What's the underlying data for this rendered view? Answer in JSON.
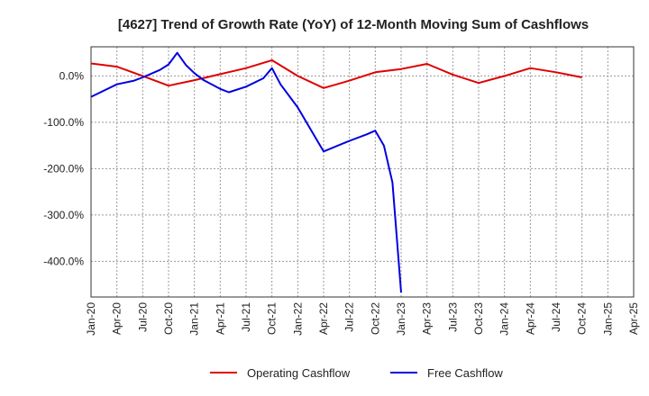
{
  "chart_data": {
    "type": "line",
    "title": "[4627]  Trend of Growth Rate (YoY) of 12-Month Moving Sum of Cashflows",
    "x": [
      "2020-01",
      "2020-04",
      "2020-07",
      "2020-10",
      "2021-01",
      "2021-04",
      "2021-07",
      "2021-10",
      "2022-01",
      "2022-04",
      "2022-07",
      "2022-10",
      "2023-01",
      "2023-04",
      "2023-07",
      "2023-10",
      "2024-01",
      "2024-04",
      "2024-07",
      "2024-10",
      "2025-01",
      "2025-04"
    ],
    "x_ticks": [
      "Jan-20",
      "Apr-20",
      "Jul-20",
      "Oct-20",
      "Jan-21",
      "Apr-21",
      "Jul-21",
      "Oct-21",
      "Jan-22",
      "Apr-22",
      "Jul-22",
      "Oct-22",
      "Jan-23",
      "Apr-23",
      "Jul-23",
      "Oct-23",
      "Jan-24",
      "Apr-24",
      "Jul-24",
      "Oct-24",
      "Jan-25",
      "Apr-25"
    ],
    "y_ticks": [
      "0.0%",
      "-100.0%",
      "-200.0%",
      "-300.0%",
      "-400.0%"
    ],
    "y_tick_values": [
      0,
      -100,
      -200,
      -300,
      -400
    ],
    "ylim": [
      -477,
      63
    ],
    "xlim_months": [
      0,
      63
    ],
    "grid": true,
    "legend_position": "bottom",
    "series": [
      {
        "name": "Operating Cashflow",
        "color": "#e00000",
        "points": [
          [
            0,
            27
          ],
          [
            3,
            20
          ],
          [
            6,
            0
          ],
          [
            9,
            -21
          ],
          [
            12,
            -9
          ],
          [
            15,
            4
          ],
          [
            18,
            17
          ],
          [
            21,
            34
          ],
          [
            24,
            0
          ],
          [
            27,
            -26
          ],
          [
            30,
            -10
          ],
          [
            33,
            8
          ],
          [
            36,
            15
          ],
          [
            39,
            26
          ],
          [
            42,
            3
          ],
          [
            45,
            -15
          ],
          [
            48,
            0
          ],
          [
            51,
            17
          ],
          [
            54,
            8
          ],
          [
            57,
            -3
          ]
        ]
      },
      {
        "name": "Free Cashflow",
        "color": "#0000e0",
        "points": [
          [
            0,
            -45
          ],
          [
            3,
            -18
          ],
          [
            5,
            -10
          ],
          [
            6,
            -3
          ],
          [
            8,
            13
          ],
          [
            9,
            25
          ],
          [
            10,
            50
          ],
          [
            11,
            24
          ],
          [
            12,
            6
          ],
          [
            13,
            -8
          ],
          [
            15,
            -28
          ],
          [
            16,
            -35
          ],
          [
            18,
            -23
          ],
          [
            20,
            -5
          ],
          [
            21,
            17
          ],
          [
            22,
            -18
          ],
          [
            24,
            -68
          ],
          [
            27,
            -163
          ],
          [
            30,
            -140
          ],
          [
            32,
            -126
          ],
          [
            33,
            -118
          ],
          [
            34,
            -150
          ],
          [
            35,
            -230
          ],
          [
            36,
            -467
          ]
        ]
      }
    ]
  }
}
